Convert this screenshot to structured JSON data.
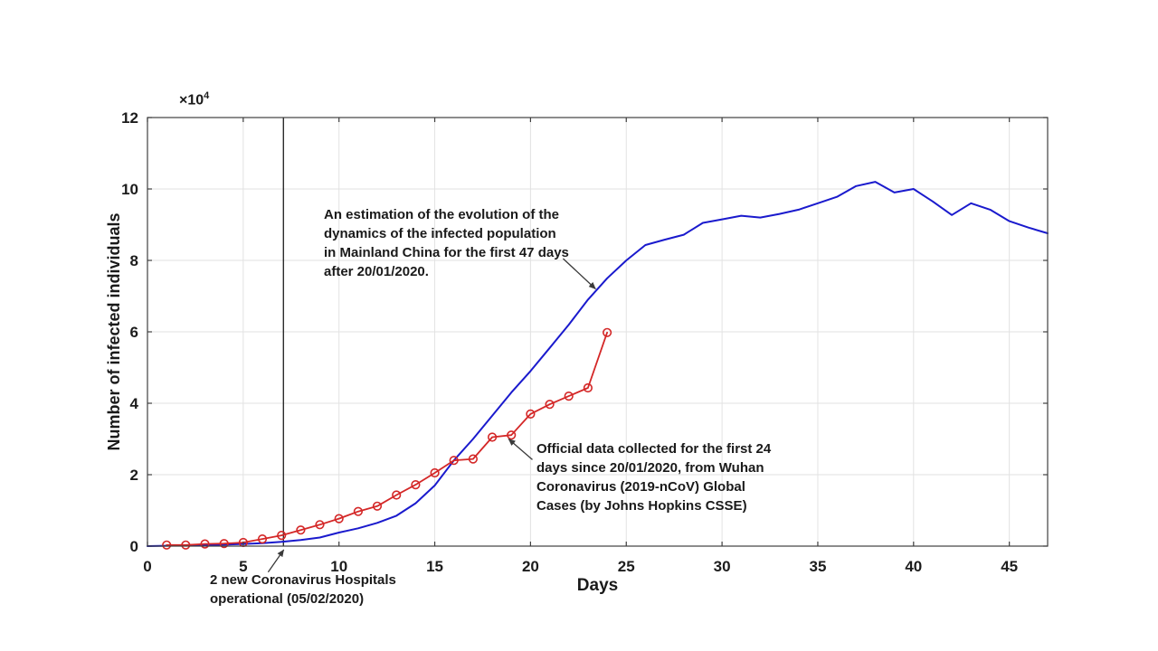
{
  "figure": {
    "background": "#ffffff",
    "xlabel": "Days",
    "ylabel": "Number of infected individuals",
    "y_multiplier_base": "×10",
    "y_multiplier_exp": "4"
  },
  "chart_data": {
    "type": "line",
    "title": "",
    "xlabel": "Days",
    "ylabel": "Number of infected individuals",
    "y_unit_multiplier": "×10^4",
    "xlim": [
      0,
      47
    ],
    "ylim": [
      0,
      12
    ],
    "x_ticks": [
      0,
      5,
      10,
      15,
      20,
      25,
      30,
      35,
      40,
      45
    ],
    "y_ticks": [
      0,
      2,
      4,
      6,
      8,
      10,
      12
    ],
    "grid": true,
    "colors": {
      "grid": "#e2e2e2",
      "axis": "#3f3f3f",
      "tick_label": "#1c1c1c",
      "vline": "#2b2b2b",
      "arrow": "#3a3a3a"
    },
    "series": [
      {
        "name": "estimation",
        "label": "Estimated evolution of infected population in Mainland China, first 47 days after 20/01/2020",
        "color": "#1a1acd",
        "marker": "none",
        "line_width": 2,
        "x": [
          0,
          1,
          2,
          3,
          4,
          5,
          6,
          7,
          8,
          9,
          10,
          11,
          12,
          13,
          14,
          15,
          16,
          17,
          18,
          19,
          20,
          21,
          22,
          23,
          24,
          25,
          26,
          27,
          28,
          29,
          30,
          31,
          32,
          33,
          34,
          35,
          36,
          37,
          38,
          39,
          40,
          41,
          42,
          43,
          44,
          45,
          46,
          47
        ],
        "y": [
          0.0,
          0.01,
          0.02,
          0.03,
          0.04,
          0.06,
          0.08,
          0.12,
          0.17,
          0.24,
          0.38,
          0.5,
          0.65,
          0.85,
          1.2,
          1.7,
          2.4,
          3.0,
          3.65,
          4.3,
          4.9,
          5.55,
          6.2,
          6.9,
          7.5,
          8.0,
          8.43,
          8.58,
          8.72,
          9.05,
          9.15,
          9.25,
          9.2,
          9.3,
          9.42,
          9.6,
          9.78,
          10.08,
          10.2,
          9.9,
          10.0,
          9.65,
          9.27,
          9.6,
          9.42,
          9.1,
          8.92,
          8.76
        ]
      },
      {
        "name": "official-data",
        "label": "Official data, first 24 days since 20/01/2020 (Johns Hopkins CSSE)",
        "color": "#d42727",
        "marker": "circle",
        "marker_radius": 4.3,
        "line_width": 1.8,
        "x": [
          1,
          2,
          3,
          4,
          5,
          6,
          7,
          8,
          9,
          10,
          11,
          12,
          13,
          14,
          15,
          16,
          17,
          18,
          19,
          20,
          21,
          22,
          23,
          24
        ],
        "y": [
          0.03,
          0.03,
          0.06,
          0.07,
          0.1,
          0.2,
          0.3,
          0.45,
          0.6,
          0.77,
          0.97,
          1.12,
          1.43,
          1.72,
          2.05,
          2.4,
          2.44,
          3.05,
          3.11,
          3.7,
          3.97,
          4.2,
          4.43,
          5.98
        ]
      }
    ],
    "vline": {
      "x": 7.1
    },
    "annotations": [
      {
        "name": "estimation-note",
        "lines": [
          "An estimation of the evolution of the",
          "dynamics of the infected population",
          "in Mainland China for the first 47 days",
          "after 20/01/2020."
        ],
        "arrow": {
          "from": [
            21.7,
            8.05
          ],
          "to": [
            23.4,
            7.2
          ]
        }
      },
      {
        "name": "official-data-note",
        "lines": [
          "Official data collected for the first 24",
          "days since 20/01/2020, from Wuhan",
          "Coronavirus (2019-nCoV) Global",
          "Cases (by Johns Hopkins CSSE)"
        ],
        "arrow": {
          "from": [
            20.1,
            2.42
          ],
          "to": [
            18.85,
            3.0
          ]
        }
      },
      {
        "name": "hospitals-note",
        "lines": [
          "2 new Coronavirus Hospitals",
          "operational (05/02/2020)"
        ],
        "arrow": {
          "from": [
            6.3,
            -0.73
          ],
          "to": [
            7.12,
            -0.1
          ]
        }
      }
    ]
  }
}
